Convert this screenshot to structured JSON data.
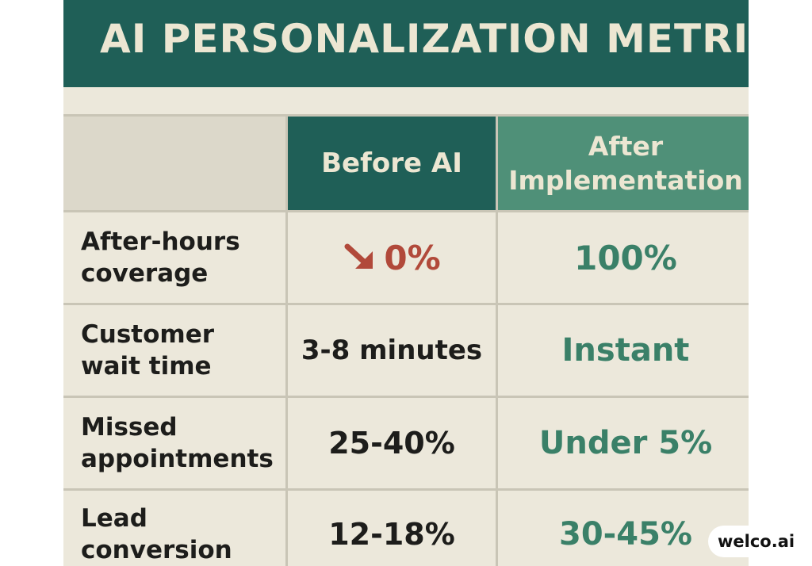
{
  "title": "AI PERSONALIZATION METRICS",
  "columns": {
    "before": "Before AI",
    "after_line1": "After",
    "after_line2": "Implementation"
  },
  "rows": [
    {
      "label_line1": "After-hours",
      "label_line2": "coverage",
      "before": "0%",
      "after": "100%"
    },
    {
      "label_line1": "Customer",
      "label_line2": "wait time",
      "before": "3-8 minutes",
      "after": "Instant"
    },
    {
      "label_line1": "Missed",
      "label_line2": "appointments",
      "before": "25-40%",
      "after": "Under 5%"
    },
    {
      "label_line1": "Lead",
      "label_line2": "conversion",
      "before": "12-18%",
      "after": "30-45%"
    }
  ],
  "icons": {
    "decline": "arrow-down-right-icon"
  },
  "colors": {
    "title_bg": "#1f5f57",
    "after_header_bg": "#4f9078",
    "decline_red": "#b1493a",
    "after_green": "#3a8068",
    "panel_bg": "#ece8db"
  },
  "watermark": "welco.ai"
}
